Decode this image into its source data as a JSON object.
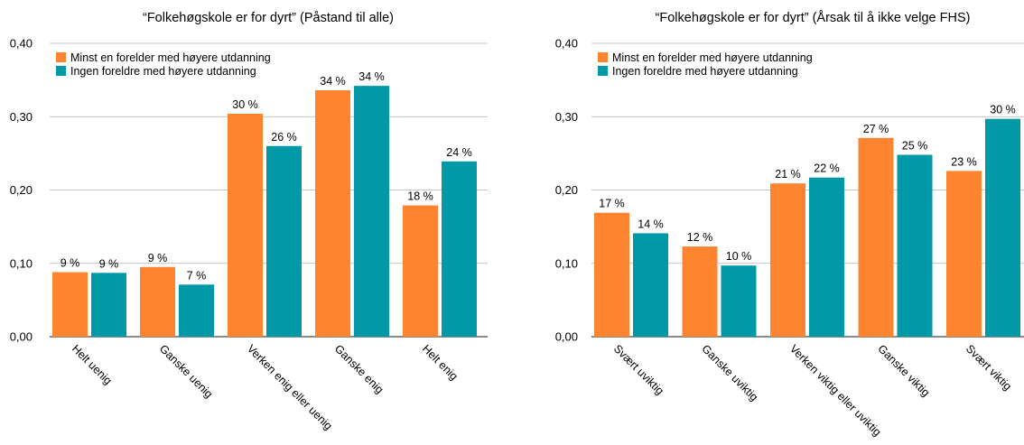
{
  "colors": {
    "series1": "#FE8430",
    "series2": "#0199A8",
    "grid": "#b0b0b0",
    "text": "#000000"
  },
  "chart_data": [
    {
      "type": "bar",
      "title": "“Folkehøgskole er for dyrt” (Påstand til alle)",
      "xlabel": "",
      "ylabel": "",
      "ylim": [
        0,
        0.4
      ],
      "yticks": [
        "0,00",
        "0,10",
        "0,20",
        "0,30",
        "0,40"
      ],
      "categories": [
        "Helt uenig",
        "Ganske uenig",
        "Verken enig eller uenig",
        "Ganske enig",
        "Helt enig"
      ],
      "series": [
        {
          "name": "Minst en forelder med høyere utdanning",
          "values": [
            0.088,
            0.095,
            0.304,
            0.336,
            0.179
          ],
          "labels": [
            "9 %",
            "9 %",
            "30 %",
            "34 %",
            "18 %"
          ]
        },
        {
          "name": "Ingen foreldre med høyere utdanning",
          "values": [
            0.087,
            0.071,
            0.26,
            0.342,
            0.239
          ],
          "labels": [
            "9 %",
            "7 %",
            "26 %",
            "34 %",
            "24 %"
          ]
        }
      ],
      "legend": "top-left",
      "grid": true
    },
    {
      "type": "bar",
      "title": "“Folkehøgskole er for dyrt” (Årsak til å ikke velge FHS)",
      "xlabel": "",
      "ylabel": "",
      "ylim": [
        0,
        0.4
      ],
      "yticks": [
        "0,00",
        "0,10",
        "0,20",
        "0,30",
        "0,40"
      ],
      "categories": [
        "Svært uviktig",
        "Ganske uviktig",
        "Verken viktig eller uviktig",
        "Ganske viktig",
        "Svært viktig"
      ],
      "series": [
        {
          "name": "Minst en forelder med høyere utdanning",
          "values": [
            0.169,
            0.123,
            0.209,
            0.271,
            0.226
          ],
          "labels": [
            "17 %",
            "12 %",
            "21 %",
            "27 %",
            "23 %"
          ]
        },
        {
          "name": "Ingen foreldre med høyere utdanning",
          "values": [
            0.141,
            0.097,
            0.217,
            0.248,
            0.297
          ],
          "labels": [
            "14 %",
            "10 %",
            "22 %",
            "25 %",
            "30 %"
          ]
        }
      ],
      "legend": "top-left",
      "grid": true
    }
  ]
}
